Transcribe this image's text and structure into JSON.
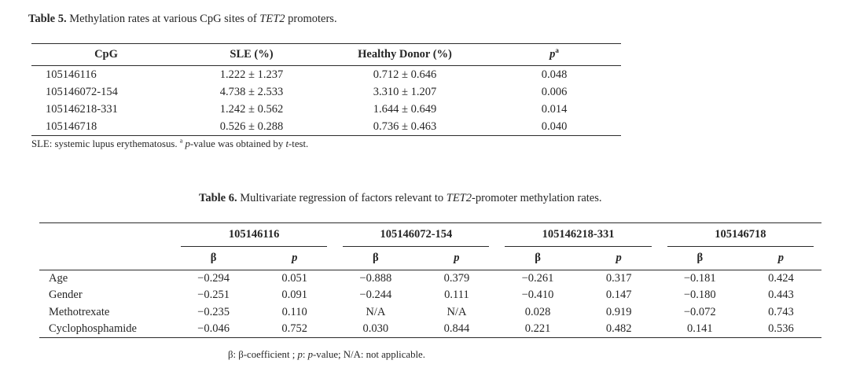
{
  "table5": {
    "caption": {
      "label": "Table 5.",
      "text_before_gene": " Methylation rates at various CpG sites of ",
      "gene": "TET2",
      "text_after_gene": " promoters."
    },
    "headers": {
      "cpg": "CpG",
      "sle": "SLE (%)",
      "healthy": "Healthy Donor (%)",
      "p": "p",
      "p_sup": "a"
    },
    "rows": [
      {
        "cpg": "105146116",
        "sle": "1.222 ± 1.237",
        "healthy": "0.712 ± 0.646",
        "p": "0.048"
      },
      {
        "cpg": "105146072-154",
        "sle": "4.738 ± 2.533",
        "healthy": "3.310 ± 1.207",
        "p": "0.006"
      },
      {
        "cpg": "105146218-331",
        "sle": "1.242 ± 0.562",
        "healthy": "1.644 ± 0.649",
        "p": "0.014"
      },
      {
        "cpg": "105146718",
        "sle": "0.526 ± 0.288",
        "healthy": "0.736 ± 0.463",
        "p": "0.040"
      }
    ],
    "footnote": {
      "t1": "SLE: systemic lupus erythematosus. ",
      "sup": "a",
      "sp": " ",
      "p": "p",
      "t2": "-value was obtained by ",
      "t": "t",
      "t3": "-test."
    }
  },
  "table6": {
    "caption": {
      "label": "Table 6.",
      "text_before_gene": " Multivariate regression of factors relevant to ",
      "gene": "TET2",
      "text_after_gene": "-promoter methylation rates."
    },
    "groups": [
      "105146116",
      "105146072-154",
      "105146218-331",
      "105146718"
    ],
    "sub": {
      "beta": "β",
      "p": "p"
    },
    "rows": [
      {
        "label": "Age",
        "v": [
          "−0.294",
          "0.051",
          "−0.888",
          "0.379",
          "−0.261",
          "0.317",
          "−0.181",
          "0.424"
        ]
      },
      {
        "label": "Gender",
        "v": [
          "−0.251",
          "0.091",
          "−0.244",
          "0.111",
          "−0.410",
          "0.147",
          "−0.180",
          "0.443"
        ]
      },
      {
        "label": "Methotrexate",
        "v": [
          "−0.235",
          "0.110",
          "N/A",
          "N/A",
          "0.028",
          "0.919",
          "−0.072",
          "0.743"
        ]
      },
      {
        "label": "Cyclophosphamide",
        "v": [
          "−0.046",
          "0.752",
          "0.030",
          "0.844",
          "0.221",
          "0.482",
          "0.141",
          "0.536"
        ]
      }
    ],
    "footnote": {
      "t1": "β: β-coefficient ; ",
      "p1": "p",
      "t2": ": ",
      "p2": "p",
      "t3": "-value; N/A: not applicable."
    }
  },
  "colors": {
    "text": "#262626",
    "rule": "#2b2b2b",
    "background": "#ffffff"
  }
}
